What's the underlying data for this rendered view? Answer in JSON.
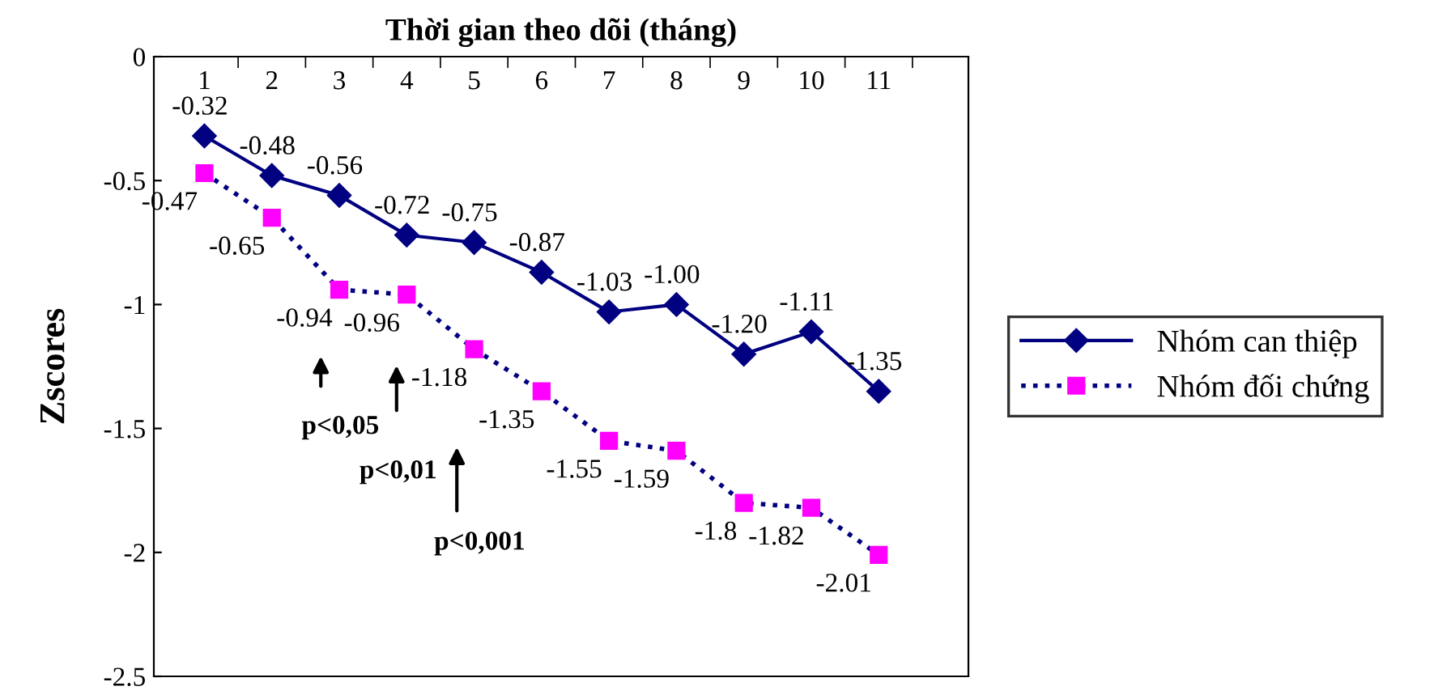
{
  "chart_data": {
    "type": "line",
    "xlabel": "Thời gian theo dõi (tháng)",
    "ylabel": "Zscores",
    "categories": [
      "1",
      "2",
      "3",
      "4",
      "5",
      "6",
      "7",
      "8",
      "9",
      "10",
      "11"
    ],
    "series": [
      {
        "name": "Nhóm can thiệp",
        "color": "#000080",
        "marker": "diamond",
        "line_style": "solid",
        "values": [
          -0.32,
          -0.48,
          -0.56,
          -0.72,
          -0.75,
          -0.87,
          -1.03,
          -1.0,
          -1.2,
          -1.11,
          -1.35
        ],
        "value_labels": [
          "-0.32",
          "-0.48",
          "-0.56",
          "-0.72",
          "-0.75",
          "-0.87",
          "-1.03",
          "-1.00",
          "-1.20",
          "-1.11",
          "-1.35"
        ]
      },
      {
        "name": "Nhóm đối chứng",
        "color": "#ff00ff",
        "marker": "square",
        "line_style": "dotted",
        "values": [
          -0.47,
          -0.65,
          -0.94,
          -0.96,
          -1.18,
          -1.35,
          -1.55,
          -1.59,
          -1.8,
          -1.82,
          -2.01
        ],
        "value_labels": [
          "-0.47",
          "-0.65",
          "-0.94",
          "-0.96",
          "-1.18",
          "-1.35",
          "-1.55",
          "-1.59",
          "-1.8",
          "-1.82",
          "-2.01"
        ]
      }
    ],
    "ylim": [
      -2.5,
      0
    ],
    "yticks": [
      -2.5,
      -2,
      -1.5,
      -1,
      -0.5,
      0
    ],
    "annotations": [
      "p<0,05",
      "p<0,01",
      "p<0,001"
    ],
    "grid": false,
    "legend": "right"
  }
}
